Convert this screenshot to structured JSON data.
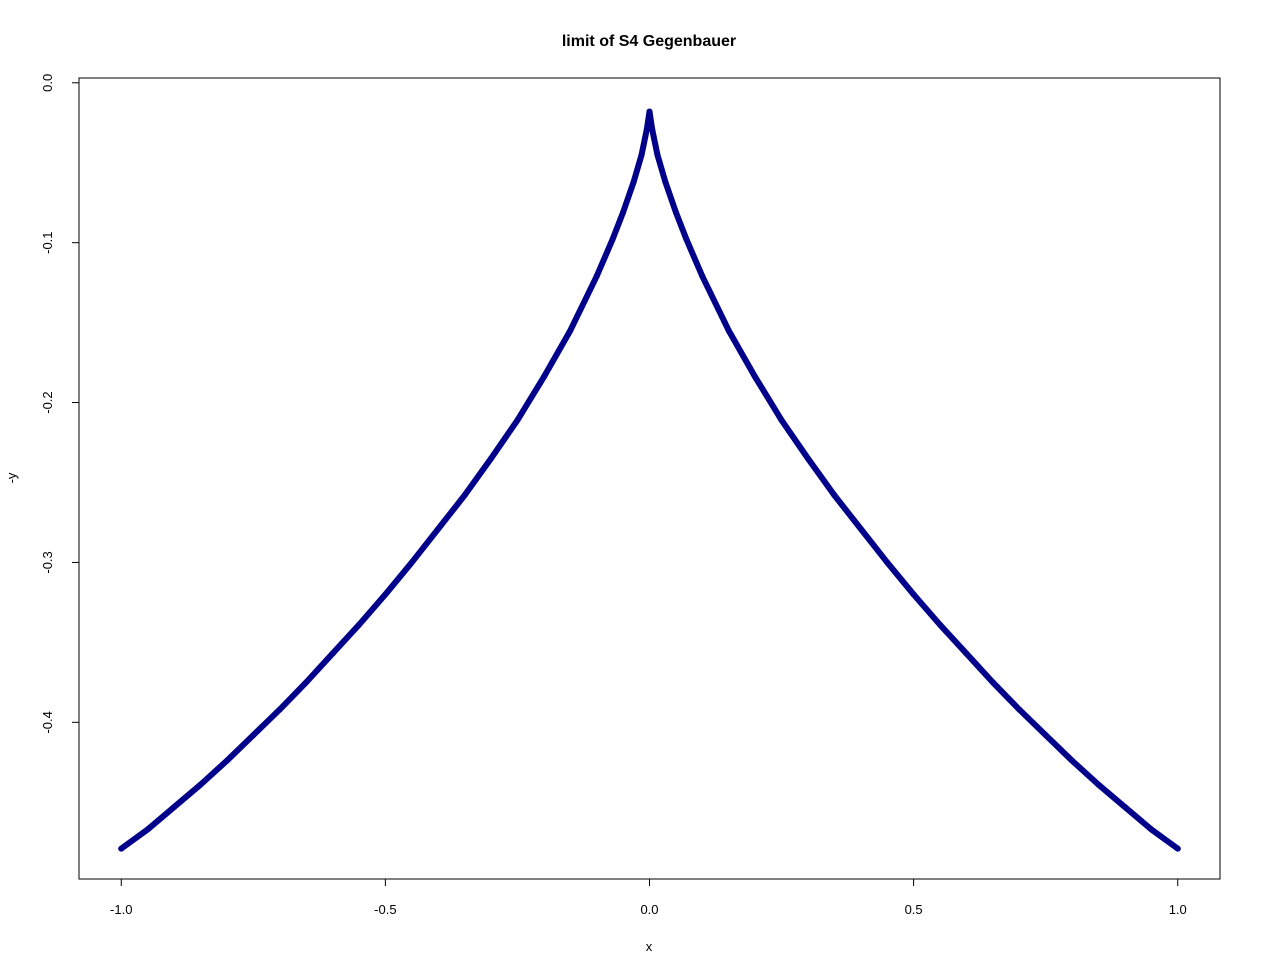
{
  "chart_data": {
    "type": "line",
    "title": "limit of S4 Gegenbauer",
    "xlabel": "x",
    "ylabel": "-y",
    "xlim": [
      -1.08,
      1.08
    ],
    "ylim": [
      -0.498,
      0.003
    ],
    "xticks": [
      -1.0,
      -0.5,
      0.0,
      0.5,
      1.0
    ],
    "xtick_labels": [
      "-1.0",
      "-0.5",
      "0.0",
      "0.5",
      "1.0"
    ],
    "yticks": [
      0.0,
      -0.1,
      -0.2,
      -0.3,
      -0.4
    ],
    "ytick_labels": [
      "0.0",
      "-0.1",
      "-0.2",
      "-0.3",
      "-0.4"
    ],
    "grid": false,
    "legend": "none",
    "series_color": "#00008B",
    "x": [
      -1.0,
      -0.95,
      -0.9,
      -0.85,
      -0.8,
      -0.75,
      -0.7,
      -0.65,
      -0.6,
      -0.55,
      -0.5,
      -0.45,
      -0.4,
      -0.35,
      -0.3,
      -0.25,
      -0.2,
      -0.15,
      -0.1,
      -0.07,
      -0.05,
      -0.03,
      -0.015,
      -0.005,
      0.0,
      0.005,
      0.015,
      0.03,
      0.05,
      0.07,
      0.1,
      0.15,
      0.2,
      0.25,
      0.3,
      0.35,
      0.4,
      0.45,
      0.5,
      0.55,
      0.6,
      0.65,
      0.7,
      0.75,
      0.8,
      0.85,
      0.9,
      0.95,
      1.0
    ],
    "y": [
      -0.479,
      -0.467,
      -0.453,
      -0.439,
      -0.424,
      -0.408,
      -0.392,
      -0.375,
      -0.357,
      -0.339,
      -0.32,
      -0.3,
      -0.279,
      -0.258,
      -0.235,
      -0.211,
      -0.184,
      -0.155,
      -0.121,
      -0.098,
      -0.081,
      -0.062,
      -0.045,
      -0.029,
      -0.018,
      -0.029,
      -0.045,
      -0.062,
      -0.081,
      -0.098,
      -0.121,
      -0.155,
      -0.184,
      -0.211,
      -0.235,
      -0.258,
      -0.279,
      -0.3,
      -0.32,
      -0.339,
      -0.357,
      -0.375,
      -0.392,
      -0.408,
      -0.424,
      -0.439,
      -0.453,
      -0.467,
      -0.479
    ]
  }
}
